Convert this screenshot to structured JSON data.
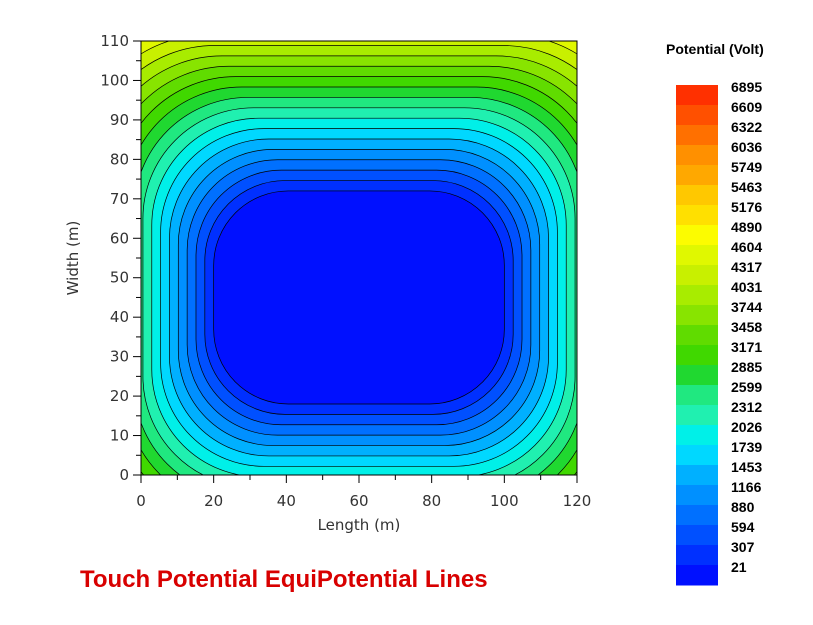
{
  "chart_data": {
    "type": "heatmap",
    "title": "Touch Potential EquiPotential Lines",
    "xlabel": "Length (m)",
    "ylabel": "Width (m)",
    "xlim": [
      0,
      120
    ],
    "ylim": [
      0,
      110
    ],
    "x_ticks": [
      "0",
      "20",
      "40",
      "60",
      "80",
      "100",
      "120"
    ],
    "y_ticks": [
      "0",
      "10",
      "20",
      "30",
      "40",
      "50",
      "60",
      "70",
      "80",
      "90",
      "100",
      "110"
    ],
    "legend_title": "Potential (Volt)",
    "legend_levels": [
      "6895",
      "6609",
      "6322",
      "6036",
      "5749",
      "5463",
      "5176",
      "4890",
      "4604",
      "4317",
      "4031",
      "3744",
      "3458",
      "3171",
      "2885",
      "2599",
      "2312",
      "2026",
      "1739",
      "1453",
      "1166",
      "880",
      "594",
      "307",
      "21"
    ],
    "legend_colors": [
      "#ff3000",
      "#ff5000",
      "#ff7000",
      "#ff9000",
      "#ffa800",
      "#ffc800",
      "#ffe000",
      "#fcfc00",
      "#e0f800",
      "#c8f000",
      "#a8ec00",
      "#88e400",
      "#60dc00",
      "#40d800",
      "#20d830",
      "#20e880",
      "#20f0b0",
      "#00f0e8",
      "#00d8ff",
      "#00b0ff",
      "#0090ff",
      "#0070ff",
      "#0050ff",
      "#0030ff",
      "#0010ff"
    ],
    "grid_region": {
      "x_range": [
        20,
        100
      ],
      "y_range": [
        18,
        72
      ]
    },
    "legend_placement": "right"
  }
}
